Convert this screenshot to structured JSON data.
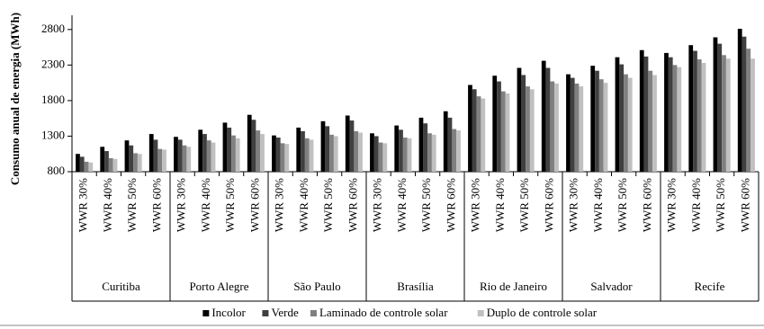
{
  "chart_data": {
    "type": "bar",
    "y_label": "Consumo anual de energia (MWh)",
    "categories": [
      "WWR 30%",
      "WWR 40%",
      "WWR 50%",
      "WWR 60%",
      "WWR 30%",
      "WWR 40%",
      "WWR 50%",
      "WWR 60%",
      "WWR 30%",
      "WWR 40%",
      "WWR 50%",
      "WWR 60%",
      "WWR 30%",
      "WWR 40%",
      "WWR 50%",
      "WWR 60%",
      "WWR 30%",
      "WWR 40%",
      "WWR 50%",
      "WWR 60%",
      "WWR 30%",
      "WWR 40%",
      "WWR 50%",
      "WWR 60%",
      "WWR 30%",
      "WWR 40%",
      "WWR 50%",
      "WWR 60%"
    ],
    "groups": [
      "Curitiba",
      "Porto Alegre",
      "São Paulo",
      "Brasília",
      "Rio de Janeiro",
      "Salvador",
      "Recife"
    ],
    "series": [
      {
        "name": "Incolor",
        "color": "#000000",
        "values": [
          1050,
          1150,
          1240,
          1330,
          1290,
          1390,
          1490,
          1600,
          1310,
          1420,
          1510,
          1590,
          1340,
          1450,
          1560,
          1650,
          2020,
          2150,
          2260,
          2360,
          2170,
          2290,
          2410,
          2510,
          2470,
          2580,
          2690,
          2810
        ]
      },
      {
        "name": "Verde",
        "color": "#404040",
        "values": [
          1010,
          1090,
          1170,
          1250,
          1250,
          1330,
          1420,
          1530,
          1280,
          1370,
          1440,
          1520,
          1300,
          1390,
          1480,
          1560,
          1960,
          2070,
          2160,
          2260,
          2120,
          2220,
          2310,
          2420,
          2410,
          2500,
          2600,
          2700
        ]
      },
      {
        "name": "Laminado de controle solar",
        "color": "#808080",
        "values": [
          940,
          990,
          1060,
          1120,
          1170,
          1240,
          1310,
          1380,
          1200,
          1270,
          1320,
          1370,
          1210,
          1280,
          1340,
          1400,
          1860,
          1930,
          2000,
          2070,
          2040,
          2100,
          2170,
          2220,
          2300,
          2380,
          2440,
          2530
        ]
      },
      {
        "name": "Duplo de controle solar",
        "color": "#c0c0c0",
        "values": [
          930,
          980,
          1050,
          1110,
          1150,
          1210,
          1270,
          1330,
          1190,
          1250,
          1300,
          1350,
          1200,
          1270,
          1320,
          1380,
          1830,
          1900,
          1960,
          2040,
          2000,
          2050,
          2120,
          2160,
          2270,
          2330,
          2390,
          2390
        ]
      }
    ],
    "ylim": [
      800,
      3000
    ],
    "yticks": [
      800,
      1300,
      1800,
      2300,
      2800
    ],
    "grid": false
  }
}
